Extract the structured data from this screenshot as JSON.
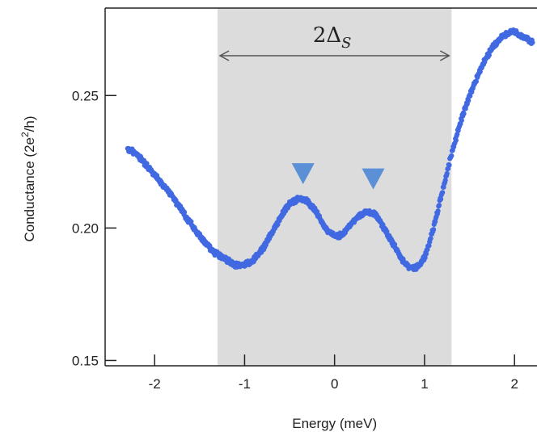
{
  "chart_data": {
    "type": "scatter",
    "xlabel": "Energy (meV)",
    "ylabel_parts": [
      "Conductance (2e",
      "2",
      "/h)"
    ],
    "xlim": [
      -2.55,
      2.25
    ],
    "ylim": [
      0.148,
      0.283
    ],
    "xticks": [
      -2,
      -1,
      0,
      1,
      2
    ],
    "xtick_labels": [
      "-2",
      "-1",
      "0",
      "1",
      "2"
    ],
    "yticks": [
      0.15,
      0.2,
      0.25
    ],
    "ytick_labels": [
      "0.15",
      "0.20",
      "0.25"
    ],
    "shaded_region": {
      "x": [
        -1.3,
        1.3
      ],
      "color": "#dcdcdc"
    },
    "annotation": {
      "text_main": "2Δ",
      "text_sub": "S",
      "arrow_x": [
        -1.3,
        1.3
      ]
    },
    "markers": [
      {
        "x": -0.35,
        "y": 0.2205,
        "shape": "triangle-down",
        "color": "#5b8fd6"
      },
      {
        "x": 0.43,
        "y": 0.2185,
        "shape": "triangle-down",
        "color": "#5b8fd6"
      }
    ],
    "series_color": "#4169e1",
    "series": [
      {
        "x": [
          -2.3,
          -2.25,
          -2.2,
          -2.15,
          -2.1,
          -2.05,
          -2.0,
          -1.95,
          -1.9,
          -1.85,
          -1.8,
          -1.75,
          -1.7,
          -1.65,
          -1.6,
          -1.55,
          -1.5,
          -1.45,
          -1.4,
          -1.35,
          -1.3,
          -1.25,
          -1.2,
          -1.15,
          -1.1,
          -1.05,
          -1.0,
          -0.95,
          -0.9,
          -0.85,
          -0.8,
          -0.75,
          -0.7,
          -0.65,
          -0.6,
          -0.55,
          -0.5,
          -0.45,
          -0.4,
          -0.35,
          -0.3,
          -0.25,
          -0.2,
          -0.15,
          -0.1,
          -0.05,
          0.0,
          0.05,
          0.1,
          0.15,
          0.2,
          0.25,
          0.3,
          0.35,
          0.4,
          0.45,
          0.5,
          0.55,
          0.6,
          0.65,
          0.7,
          0.75,
          0.8,
          0.85,
          0.9,
          0.95,
          1.0,
          1.05,
          1.1,
          1.15,
          1.2,
          1.25,
          1.3,
          1.35,
          1.4,
          1.45,
          1.5,
          1.55,
          1.6,
          1.65,
          1.7,
          1.75,
          1.8,
          1.85,
          1.9,
          1.95,
          2.0,
          2.05,
          2.1,
          2.15,
          2.2
        ],
        "y": [
          0.23,
          0.229,
          0.228,
          0.226,
          0.224,
          0.222,
          0.22,
          0.218,
          0.216,
          0.214,
          0.212,
          0.209,
          0.207,
          0.204,
          0.202,
          0.199,
          0.197,
          0.195,
          0.193,
          0.191,
          0.19,
          0.189,
          0.188,
          0.187,
          0.186,
          0.186,
          0.186,
          0.187,
          0.188,
          0.19,
          0.192,
          0.195,
          0.198,
          0.201,
          0.204,
          0.207,
          0.209,
          0.21,
          0.211,
          0.211,
          0.21,
          0.208,
          0.206,
          0.203,
          0.2,
          0.198,
          0.197,
          0.197,
          0.198,
          0.2,
          0.202,
          0.204,
          0.205,
          0.206,
          0.206,
          0.205,
          0.203,
          0.2,
          0.197,
          0.194,
          0.191,
          0.188,
          0.186,
          0.185,
          0.185,
          0.186,
          0.189,
          0.194,
          0.2,
          0.207,
          0.214,
          0.221,
          0.228,
          0.234,
          0.24,
          0.245,
          0.25,
          0.254,
          0.258,
          0.262,
          0.265,
          0.268,
          0.27,
          0.272,
          0.273,
          0.274,
          0.274,
          0.273,
          0.272,
          0.271,
          0.27
        ]
      }
    ]
  }
}
